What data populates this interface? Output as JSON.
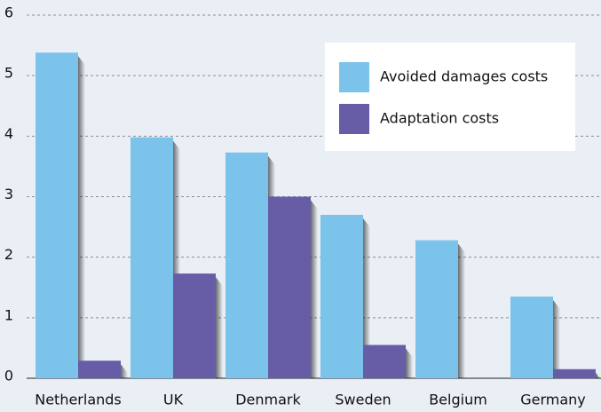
{
  "chart_data": {
    "type": "bar",
    "categories": [
      "Netherlands",
      "UK",
      "Denmark",
      "Sweden",
      "Belgium",
      "Germany"
    ],
    "series": [
      {
        "name": "Avoided damages costs",
        "color": "#7cc3ec",
        "values": [
          5.38,
          3.98,
          3.73,
          2.7,
          2.28,
          1.35
        ]
      },
      {
        "name": "Adaptation costs",
        "color": "#675ca6",
        "values": [
          0.29,
          1.73,
          3.0,
          0.55,
          null,
          0.15
        ]
      }
    ],
    "ylim": [
      0,
      6
    ],
    "yticks": [
      0,
      1,
      2,
      3,
      4,
      5,
      6
    ],
    "grid": true,
    "legend": "upper right"
  }
}
